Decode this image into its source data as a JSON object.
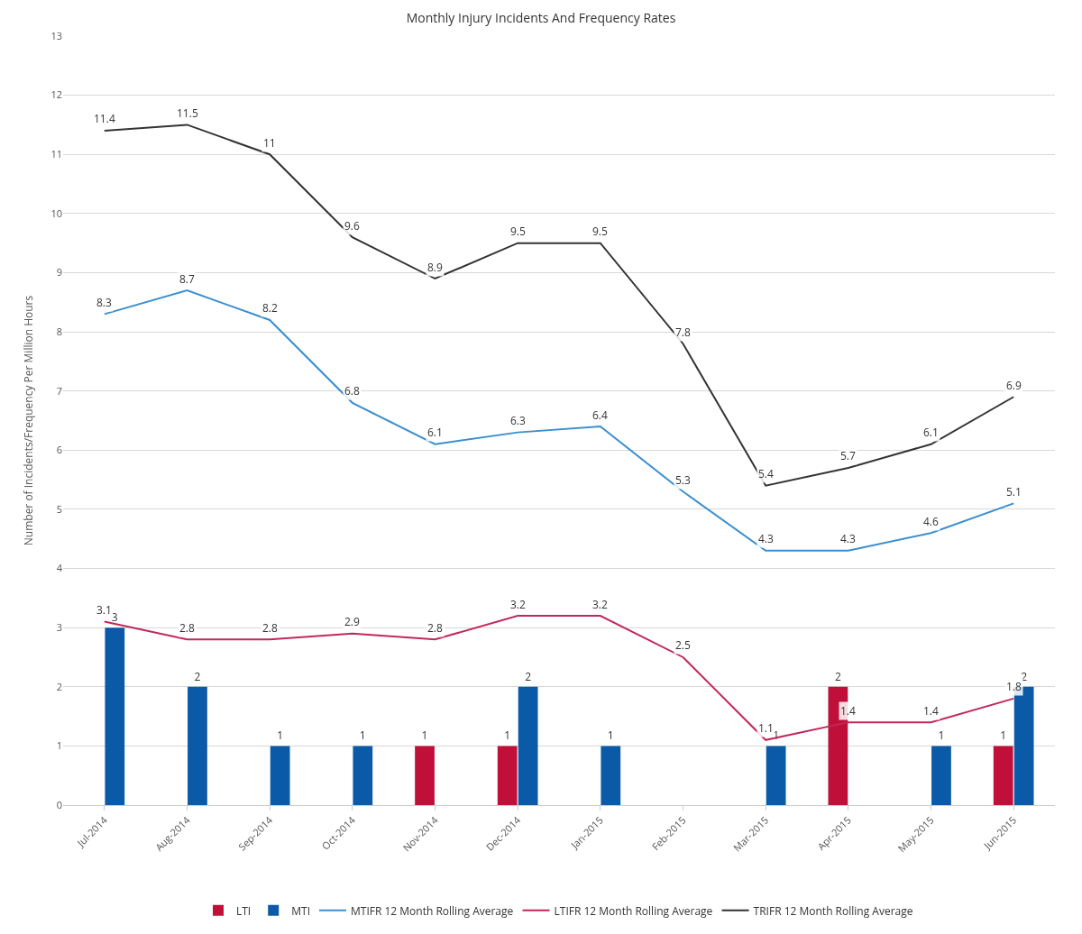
{
  "chart_data": {
    "type": "bar",
    "title": "Monthly Injury Incidents And Frequency Rates",
    "ylabel": "Number of Incidents/Frequency Per Million Hours",
    "categories": [
      "Jul-2014",
      "Aug-2014",
      "Sep-2014",
      "Oct-2014",
      "Nov-2014",
      "Dec-2014",
      "Jan-2015",
      "Feb-2015",
      "Mar-2015",
      "Apr-2015",
      "May-2015",
      "Jun-2015"
    ],
    "series": [
      {
        "name": "LTI",
        "color": "#c0103a",
        "values": [
          null,
          null,
          null,
          null,
          1,
          1,
          null,
          null,
          null,
          2,
          null,
          1
        ]
      },
      {
        "name": "MTI",
        "color": "#0b5aa8",
        "values": [
          3,
          2,
          1,
          1,
          null,
          2,
          1,
          null,
          1,
          null,
          1,
          2
        ]
      },
      {
        "name": "MTIFR 12 Month Rolling Average",
        "type": "line",
        "color": "#3a8fd0",
        "values": [
          8.3,
          8.7,
          8.2,
          6.8,
          6.1,
          6.3,
          6.4,
          5.3,
          4.3,
          4.3,
          4.6,
          5.1
        ]
      },
      {
        "name": "LTIFR 12 Month Rolling Average",
        "type": "line",
        "color": "#c2285a",
        "values": [
          3.1,
          2.8,
          2.8,
          2.9,
          2.8,
          3.2,
          3.2,
          2.5,
          1.1,
          1.4,
          1.4,
          1.8
        ]
      },
      {
        "name": "TRIFR 12 Month Rolling Average",
        "type": "line",
        "color": "#333333",
        "values": [
          11.4,
          11.5,
          11,
          9.6,
          8.9,
          9.5,
          9.5,
          7.8,
          5.4,
          5.7,
          6.1,
          6.9
        ]
      }
    ],
    "ylim": [
      0,
      13
    ],
    "yticks": [
      0,
      1,
      2,
      3,
      4,
      5,
      6,
      7,
      8,
      9,
      10,
      11,
      12,
      13
    ],
    "grid": "y",
    "legend": "bottom",
    "data_labels": true,
    "marker": "none",
    "line_style": "solid"
  }
}
